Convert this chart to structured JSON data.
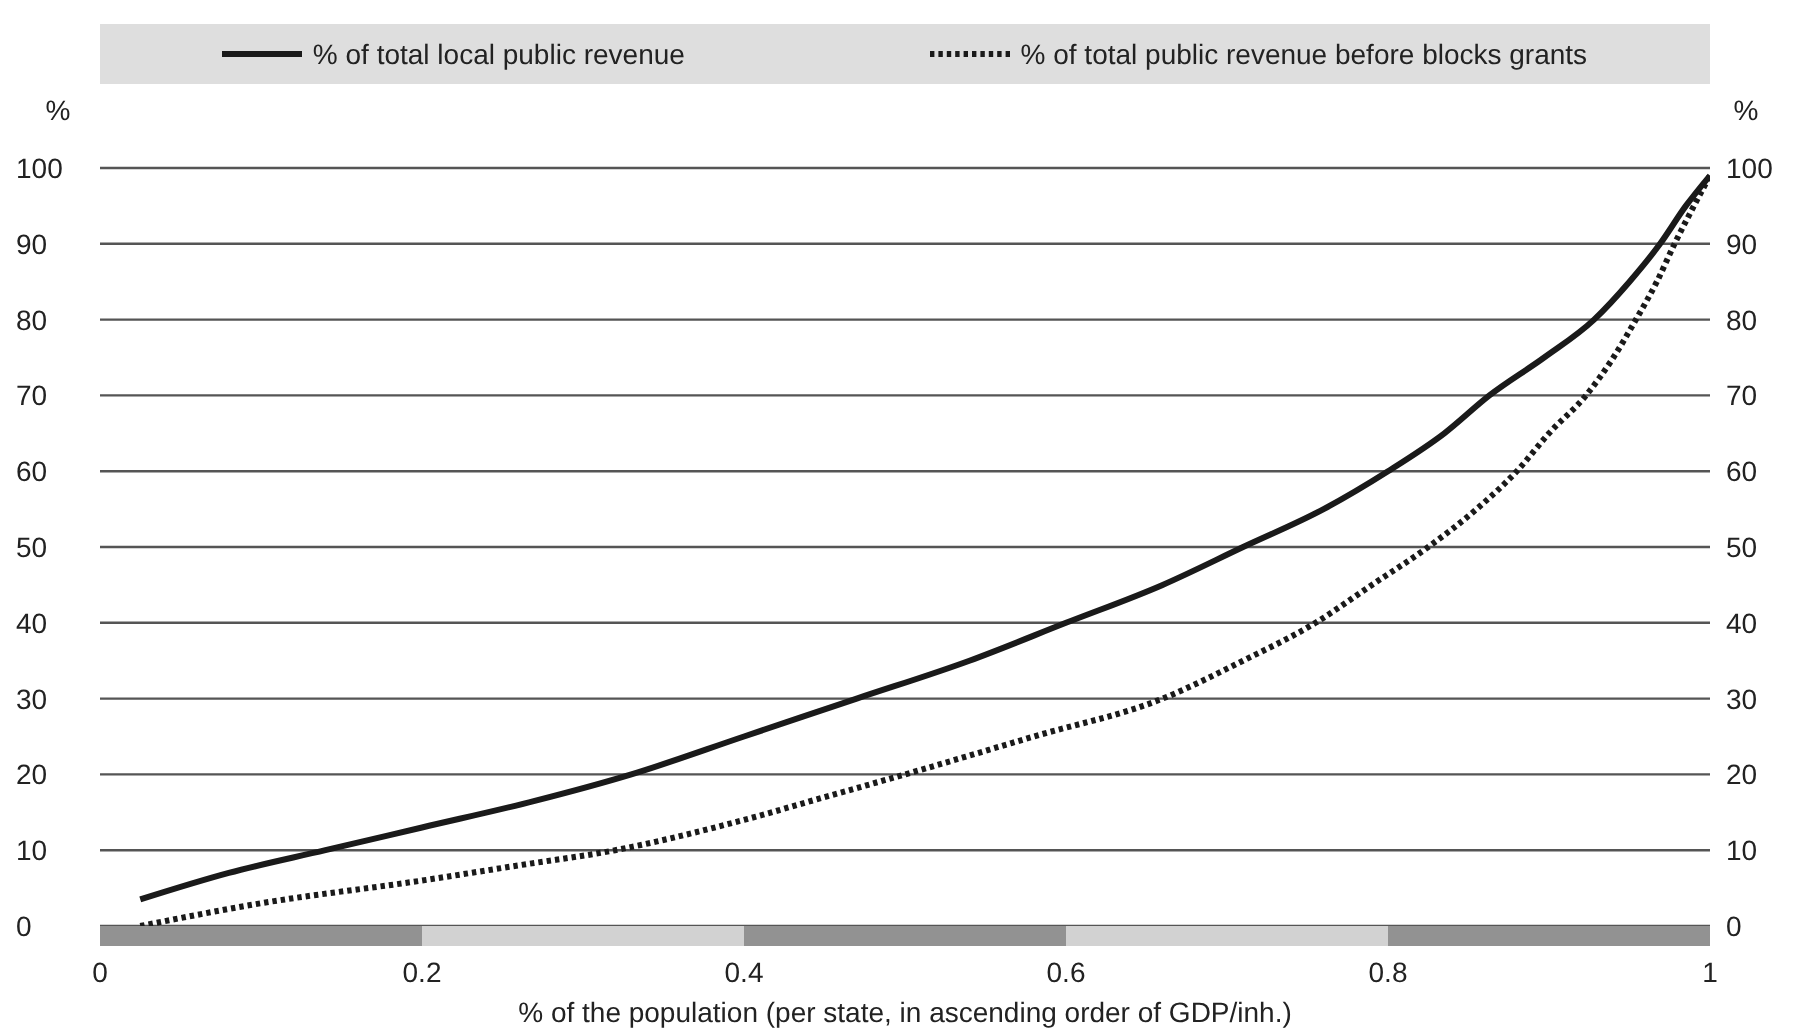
{
  "chart_data": {
    "type": "line",
    "xlabel": "% of the population (per state, in ascending order of GDP/inh.)",
    "ylabel": "%",
    "y2label": "%",
    "series": [
      {
        "name": "% of total local public revenue",
        "color": "#1a1a1a",
        "line_style": "solid",
        "x": [
          0.025,
          0.08,
          0.14,
          0.2,
          0.27,
          0.33,
          0.4,
          0.47,
          0.54,
          0.6,
          0.66,
          0.71,
          0.76,
          0.8,
          0.835,
          0.863,
          0.897,
          0.928,
          0.95,
          0.969,
          0.985,
          1
        ],
        "values": [
          3.5,
          7,
          10,
          13,
          16.5,
          20,
          25,
          30,
          35,
          40,
          45,
          50,
          55,
          60,
          65,
          70,
          75,
          80,
          85,
          90,
          95,
          99
        ]
      },
      {
        "name": "% of total public revenue before blocks grants",
        "color": "#1a1a1a",
        "line_style": "dotted",
        "x": [
          0.025,
          0.1,
          0.2,
          0.26,
          0.32,
          0.4,
          0.45,
          0.5,
          0.58,
          0.66,
          0.71,
          0.755,
          0.79,
          0.825,
          0.855,
          0.88,
          0.9,
          0.923,
          0.94,
          0.954,
          0.967,
          0.978,
          0.99,
          1
        ],
        "values": [
          0,
          3,
          6,
          8,
          10,
          14,
          17,
          20,
          25,
          30,
          35,
          40,
          45,
          50,
          55,
          60,
          65,
          70,
          75,
          80,
          85,
          90,
          95,
          99
        ]
      }
    ],
    "xlim": [
      0,
      1
    ],
    "xticks": [
      0,
      0.2,
      0.4,
      0.6,
      0.8,
      1
    ],
    "ylim": [
      0,
      100
    ],
    "yticks": [
      0,
      10,
      20,
      30,
      40,
      50,
      60,
      70,
      80,
      90,
      100
    ],
    "y2lim": [
      0,
      100
    ],
    "y2ticks": [
      0,
      10,
      20,
      30,
      40,
      50,
      60,
      70,
      80,
      90,
      100
    ],
    "grid": "y",
    "legend": "top",
    "marker": "none"
  }
}
